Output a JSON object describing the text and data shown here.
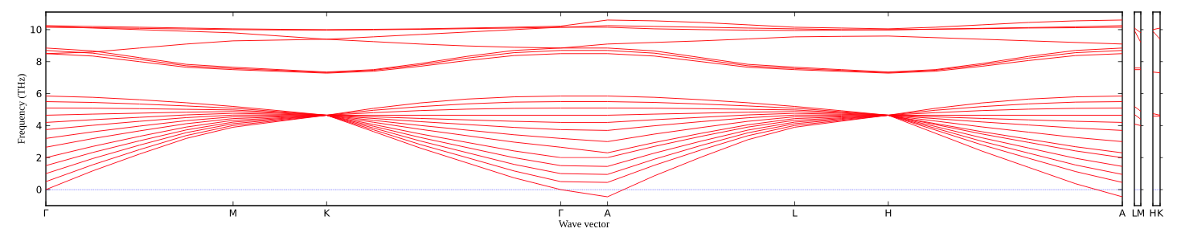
{
  "chart_data": [
    {
      "type": "line",
      "xlabel": "Wave vector",
      "ylabel": "Frequency (THz)",
      "ylim": [
        -1,
        11.1
      ],
      "yticks": [
        0,
        2,
        4,
        6,
        8,
        10
      ],
      "categories": [
        "Γ",
        null,
        null,
        null,
        "M",
        null,
        "K",
        null,
        null,
        null,
        null,
        "Γ",
        "A",
        null,
        null,
        null,
        "L",
        null,
        "H",
        null,
        null,
        null,
        null,
        "A"
      ],
      "ref_lines": [
        {
          "axis": "y",
          "value": 0,
          "color": "#0000ff",
          "line_style": "dotted"
        }
      ],
      "series": [
        {
          "color": "#ff0000",
          "values": [
            10.25,
            10.2,
            10.15,
            10.1,
            10.05,
            10.02,
            10.0,
            10.02,
            10.05,
            10.1,
            10.15,
            10.22,
            10.6,
            10.55,
            10.45,
            10.3,
            10.15,
            10.1,
            10.05,
            10.15,
            10.3,
            10.45,
            10.55,
            10.6
          ]
        },
        {
          "color": "#ff0001",
          "values": [
            10.15,
            10.12,
            10.08,
            10.04,
            10.0,
            9.98,
            9.97,
            9.99,
            10.02,
            10.06,
            10.1,
            10.15,
            10.25,
            10.2,
            10.15,
            10.1,
            10.05,
            10.0,
            9.98,
            10.03,
            10.08,
            10.13,
            10.18,
            10.25
          ]
        },
        {
          "color": "#ff0002",
          "values": [
            10.2,
            10.1,
            10.0,
            9.9,
            9.8,
            9.6,
            9.4,
            9.25,
            9.1,
            8.98,
            8.9,
            8.85,
            9.1,
            9.2,
            9.3,
            9.42,
            9.55,
            9.58,
            9.6,
            9.5,
            9.4,
            9.3,
            9.2,
            9.1
          ]
        },
        {
          "color": "#ff0003",
          "values": [
            8.5,
            8.6,
            8.85,
            9.1,
            9.3,
            9.35,
            9.4,
            9.55,
            9.7,
            9.85,
            10.0,
            10.15,
            10.15,
            10.05,
            10.0,
            9.97,
            9.95,
            9.97,
            10.0,
            10.03,
            10.06,
            10.1,
            10.12,
            10.15
          ]
        },
        {
          "color": "#ff0004",
          "values": [
            8.85,
            8.67,
            8.25,
            7.83,
            7.65,
            7.5,
            7.35,
            7.5,
            7.88,
            8.33,
            8.7,
            8.85,
            8.85,
            8.67,
            8.25,
            7.83,
            7.65,
            7.5,
            7.35,
            7.5,
            7.88,
            8.33,
            8.7,
            8.85
          ]
        },
        {
          "color": "#ff0005",
          "values": [
            8.7,
            8.53,
            8.14,
            7.74,
            7.57,
            7.45,
            7.32,
            7.46,
            7.8,
            8.22,
            8.56,
            8.7,
            8.7,
            8.53,
            8.14,
            7.74,
            7.57,
            7.45,
            7.32,
            7.46,
            7.8,
            8.22,
            8.56,
            8.7
          ]
        },
        {
          "color": "#ff0006",
          "values": [
            8.5,
            8.35,
            8.0,
            7.65,
            7.5,
            7.39,
            7.28,
            7.4,
            7.71,
            8.07,
            8.38,
            8.5,
            8.5,
            8.35,
            8.0,
            7.65,
            7.5,
            7.39,
            7.28,
            7.4,
            7.71,
            8.07,
            8.38,
            8.5
          ]
        },
        {
          "color": "#ff0007",
          "values": [
            5.85,
            5.77,
            5.62,
            5.43,
            5.2,
            4.93,
            4.65,
            5.08,
            5.42,
            5.66,
            5.8,
            5.85,
            5.85,
            5.77,
            5.62,
            5.43,
            5.2,
            4.93,
            4.65,
            5.08,
            5.42,
            5.66,
            5.8,
            5.85
          ]
        },
        {
          "color": "#ff0008",
          "values": [
            5.5,
            5.45,
            5.35,
            5.23,
            5.09,
            4.87,
            4.65,
            4.96,
            5.19,
            5.36,
            5.47,
            5.5,
            5.5,
            5.45,
            5.35,
            5.23,
            5.09,
            4.87,
            4.65,
            4.96,
            5.19,
            5.36,
            5.47,
            5.5
          ]
        },
        {
          "color": "#ff0009",
          "values": [
            5.1,
            5.09,
            5.06,
            5.02,
            4.98,
            4.82,
            4.65,
            4.81,
            4.94,
            5.03,
            5.08,
            5.1,
            5.1,
            5.09,
            5.06,
            5.02,
            4.98,
            4.82,
            4.65,
            4.81,
            4.94,
            5.03,
            5.08,
            5.1
          ]
        },
        {
          "color": "#ff000a",
          "values": [
            4.65,
            4.72,
            4.78,
            4.84,
            4.88,
            4.77,
            4.65,
            4.65,
            4.65,
            4.65,
            4.65,
            4.65,
            4.65,
            4.72,
            4.78,
            4.84,
            4.88,
            4.77,
            4.65,
            4.65,
            4.65,
            4.65,
            4.65,
            4.65
          ]
        },
        {
          "color": "#ff000b",
          "values": [
            4.2,
            4.37,
            4.52,
            4.67,
            4.77,
            4.71,
            4.65,
            4.55,
            4.45,
            4.36,
            4.27,
            4.2,
            4.2,
            4.37,
            4.52,
            4.67,
            4.77,
            4.71,
            4.65,
            4.55,
            4.45,
            4.36,
            4.27,
            4.2
          ]
        },
        {
          "color": "#ff000c",
          "values": [
            3.75,
            4.02,
            4.27,
            4.5,
            4.66,
            4.66,
            4.65,
            4.45,
            4.25,
            4.07,
            3.89,
            3.75,
            3.7,
            3.99,
            4.25,
            4.49,
            4.66,
            4.66,
            4.65,
            4.44,
            4.23,
            4.04,
            3.85,
            3.7
          ]
        },
        {
          "color": "#ff000d",
          "values": [
            3.2,
            3.61,
            3.97,
            4.31,
            4.55,
            4.6,
            4.65,
            4.33,
            4.01,
            3.72,
            3.43,
            3.2,
            3.0,
            3.47,
            3.88,
            4.27,
            4.55,
            4.6,
            4.65,
            4.29,
            3.92,
            3.59,
            3.26,
            3.0
          ]
        },
        {
          "color": "#ff000e",
          "values": [
            2.65,
            3.19,
            3.67,
            4.12,
            4.44,
            4.55,
            4.65,
            4.21,
            3.77,
            3.37,
            2.97,
            2.65,
            2.3,
            2.94,
            3.52,
            4.05,
            4.44,
            4.55,
            4.65,
            4.13,
            3.62,
            3.15,
            2.68,
            2.3
          ]
        },
        {
          "color": "#ff000f",
          "values": [
            2.0,
            2.7,
            3.33,
            3.91,
            4.33,
            4.49,
            4.65,
            4.07,
            3.48,
            2.95,
            2.42,
            2.0,
            2.0,
            2.7,
            3.33,
            3.91,
            4.33,
            4.49,
            4.65,
            4.07,
            3.48,
            2.95,
            2.42,
            2.0
          ]
        },
        {
          "color": "#ff0010",
          "values": [
            1.5,
            2.32,
            3.05,
            3.73,
            4.22,
            4.44,
            4.65,
            3.96,
            3.26,
            2.63,
            2.0,
            1.5,
            1.45,
            2.28,
            3.03,
            3.72,
            4.22,
            4.44,
            4.65,
            3.95,
            3.24,
            2.6,
            1.96,
            1.45
          ]
        },
        {
          "color": "#ff0011",
          "values": [
            1.0,
            1.94,
            2.78,
            3.56,
            4.12,
            4.39,
            4.65,
            3.85,
            3.04,
            2.31,
            1.58,
            1.0,
            0.95,
            1.9,
            2.76,
            3.55,
            4.12,
            4.39,
            4.65,
            3.84,
            3.02,
            2.28,
            1.54,
            0.95
          ]
        },
        {
          "color": "#ff0012",
          "values": [
            0.5,
            1.55,
            2.5,
            3.38,
            4.01,
            4.33,
            4.65,
            3.74,
            2.82,
            2.0,
            1.17,
            0.5,
            0.45,
            1.52,
            2.48,
            3.37,
            4.01,
            4.33,
            4.65,
            3.73,
            2.8,
            1.96,
            1.13,
            0.45
          ]
        },
        {
          "color": "#ff0013",
          "values": [
            0,
            1.17,
            2.22,
            3.2,
            3.9,
            4.28,
            4.65,
            3.63,
            2.6,
            1.67,
            0.74,
            0,
            -0.45,
            0.86,
            2.03,
            3.12,
            3.9,
            4.28,
            4.65,
            3.53,
            2.41,
            1.39,
            0.37,
            -0.45
          ]
        }
      ]
    },
    {
      "type": "line",
      "tick_labels": "x",
      "ylim": [
        -1,
        11.1
      ],
      "yticks": [
        0,
        2,
        4,
        6,
        8,
        10
      ],
      "categories": [
        "L",
        "M"
      ],
      "ref_lines": [
        {
          "axis": "y",
          "value": 0,
          "color": "#0000ff",
          "line_style": "dotted"
        }
      ],
      "series": [
        {
          "color": "#ff0000",
          "values": [
            10.1,
            9.8
          ]
        },
        {
          "color": "#ff0001",
          "values": [
            9.95,
            9.2
          ]
        },
        {
          "color": "#ff0002",
          "values": [
            7.6,
            7.6
          ]
        },
        {
          "color": "#ff0003",
          "values": [
            7.5,
            7.5
          ]
        },
        {
          "color": "#ff0004",
          "values": [
            5.2,
            4.9
          ]
        },
        {
          "color": "#ff0005",
          "values": [
            4.7,
            4.4
          ]
        },
        {
          "color": "#ff0006",
          "values": [
            4.1,
            4.0
          ]
        }
      ]
    },
    {
      "type": "line",
      "tick_labels": "x",
      "ylim": [
        -1,
        11.1
      ],
      "yticks": [
        0,
        2,
        4,
        6,
        8,
        10
      ],
      "categories": [
        "H",
        "K"
      ],
      "ref_lines": [
        {
          "axis": "y",
          "value": 0,
          "color": "#0000ff",
          "line_style": "dotted"
        }
      ],
      "series": [
        {
          "color": "#ff0000",
          "values": [
            10.0,
            10.1
          ]
        },
        {
          "color": "#ff0001",
          "values": [
            9.9,
            9.4
          ]
        },
        {
          "color": "#ff0002",
          "values": [
            7.35,
            7.3
          ]
        },
        {
          "color": "#ff0003",
          "values": [
            4.75,
            4.65
          ]
        },
        {
          "color": "#ff0004",
          "values": [
            4.6,
            4.6
          ]
        }
      ]
    }
  ]
}
